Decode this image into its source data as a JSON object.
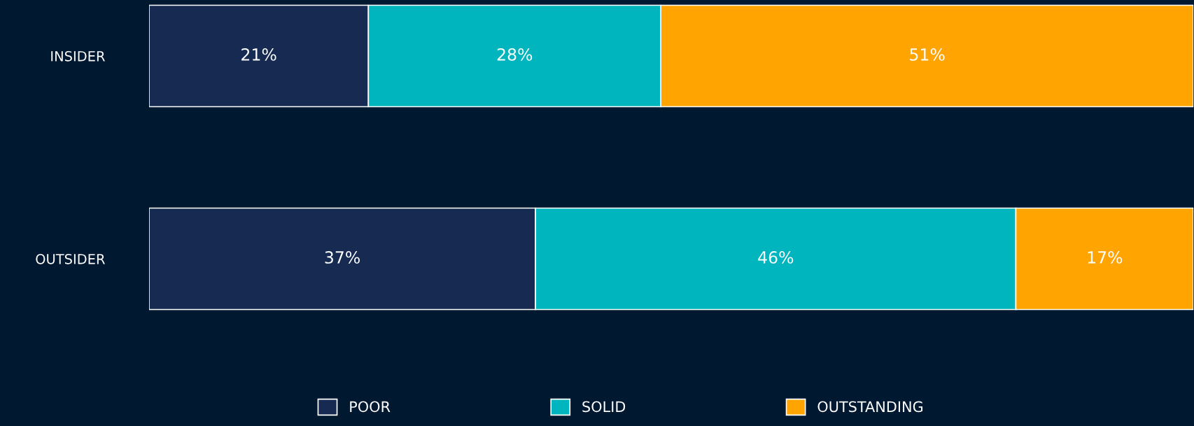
{
  "chart_data": {
    "type": "bar",
    "orientation": "horizontal",
    "stacked": true,
    "categories": [
      "INSIDER",
      "OUTSIDER"
    ],
    "series": [
      {
        "name": "POOR",
        "color": "#162a52",
        "values": [
          21,
          37
        ],
        "value_labels": [
          "21%",
          "37%"
        ]
      },
      {
        "name": "SOLID",
        "color": "#00b5bd",
        "values": [
          28,
          46
        ],
        "value_labels": [
          "28%",
          "46%"
        ]
      },
      {
        "name": "OUTSTANDING",
        "color": "#ffa400",
        "values": [
          51,
          17
        ],
        "value_labels": [
          "51%",
          "17%"
        ]
      }
    ],
    "xlim": [
      0,
      100
    ],
    "tick_labels": "y",
    "grid": false,
    "legend": "bottom"
  }
}
